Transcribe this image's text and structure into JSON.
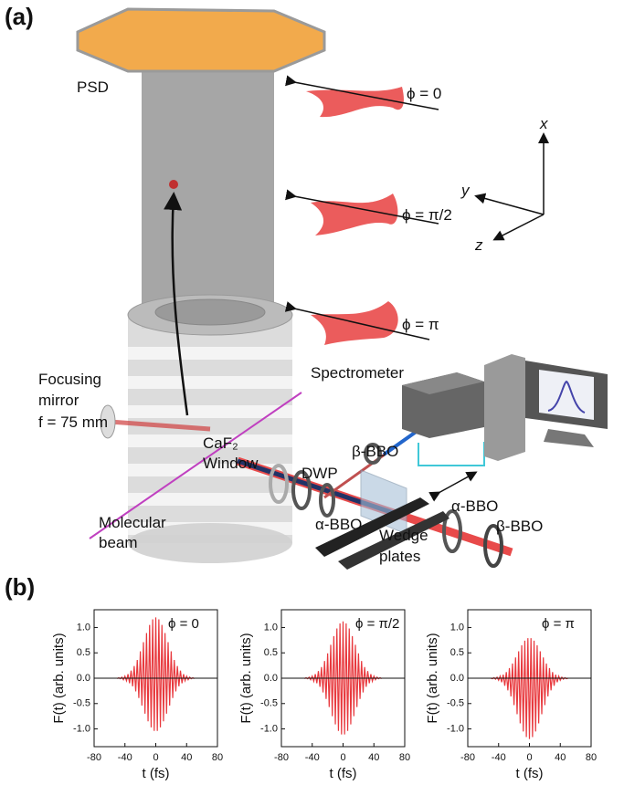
{
  "panel_a": {
    "label": "(a)",
    "labels": {
      "psd": "PSD",
      "phi_0": "ϕ = 0",
      "phi_pi2": "ϕ = π/2",
      "phi_pi": "ϕ = π",
      "axis_x": "x",
      "axis_y": "y",
      "axis_z": "z",
      "spectrometer": "Spectrometer",
      "focusing_mirror": [
        "Focusing",
        "mirror",
        "f = 75 mm"
      ],
      "caf2_window": [
        "CaF₂",
        "Window"
      ],
      "dwp": "DWP",
      "beta_bbo_1": "β-BBO",
      "alpha_bbo_1": "α-BBO",
      "molecular_beam": [
        "Molecular",
        "beam"
      ],
      "wedge_plates": [
        "Wedge",
        "plates"
      ],
      "alpha_bbo_2": "α-BBO",
      "beta_bbo_2": "β-BBO"
    }
  },
  "panel_b": {
    "label": "(b)"
  },
  "chart_data": [
    {
      "type": "line",
      "annotation": "ϕ = 0",
      "xlabel": "t (fs)",
      "ylabel": "F(t) (arb. units)",
      "xlim": [
        -80,
        80
      ],
      "xticks": [
        -80,
        -40,
        0,
        40,
        80
      ],
      "ylim": [
        -1.35,
        1.35
      ],
      "yticks": [
        {
          "value": 1,
          "label": "1.0"
        },
        {
          "value": 0.5,
          "label": "0.5"
        },
        {
          "value": 0,
          "label": "0.0"
        },
        {
          "value": -0.5,
          "label": "-0.5"
        },
        {
          "value": -1,
          "label": "-1.0"
        }
      ],
      "x": [
        -50,
        -48,
        -46,
        -44,
        -42,
        -40,
        -38,
        -36,
        -34,
        -32,
        -30,
        -28,
        -26,
        -24,
        -22,
        -20,
        -18,
        -16,
        -14,
        -12,
        -10,
        -8,
        -6,
        -4,
        -2,
        0,
        2,
        4,
        6,
        8,
        10,
        12,
        14,
        16,
        18,
        20,
        22,
        24,
        26,
        28,
        30,
        32,
        34,
        36,
        38,
        40,
        42,
        44,
        46,
        48,
        50
      ],
      "series": [
        {
          "color": "#e8383d",
          "values": [
            -0.01,
            0.01,
            -0.01,
            0.02,
            -0.03,
            0.04,
            -0.05,
            0.08,
            -0.1,
            0.15,
            -0.16,
            0.24,
            -0.26,
            0.36,
            -0.39,
            0.53,
            -0.54,
            0.71,
            -0.7,
            0.89,
            -0.85,
            1.05,
            -0.97,
            1.16,
            -1.04,
            1.2,
            -1.04,
            1.16,
            -0.97,
            1.05,
            -0.85,
            0.89,
            -0.7,
            0.71,
            -0.54,
            0.53,
            -0.39,
            0.36,
            -0.26,
            0.24,
            -0.16,
            0.15,
            -0.1,
            0.08,
            -0.05,
            0.04,
            -0.03,
            0.02,
            -0.01,
            0.01,
            -0.01
          ]
        }
      ]
    },
    {
      "type": "line",
      "annotation": "ϕ = π/2",
      "xlabel": "t (fs)",
      "ylabel": "F(t) (arb. units)",
      "xlim": [
        -80,
        80
      ],
      "xticks": [
        -80,
        -40,
        0,
        40,
        80
      ],
      "ylim": [
        -1.35,
        1.35
      ],
      "yticks": [
        {
          "value": 1,
          "label": "1.0"
        },
        {
          "value": 0.5,
          "label": "0.5"
        },
        {
          "value": 0,
          "label": "0.0"
        },
        {
          "value": -0.5,
          "label": "-0.5"
        },
        {
          "value": -1,
          "label": "-1.0"
        }
      ],
      "x": [
        -50,
        -48,
        -46,
        -44,
        -42,
        -40,
        -38,
        -36,
        -34,
        -32,
        -30,
        -28,
        -26,
        -24,
        -22,
        -20,
        -18,
        -16,
        -14,
        -12,
        -10,
        -8,
        -6,
        -4,
        -2,
        0,
        2,
        4,
        6,
        8,
        10,
        12,
        14,
        16,
        18,
        20,
        22,
        24,
        26,
        28,
        30,
        32,
        34,
        36,
        38,
        40,
        42,
        44,
        46,
        48,
        50
      ],
      "series": [
        {
          "color": "#e8383d",
          "values": [
            -0.01,
            0.01,
            -0.01,
            0.02,
            -0.03,
            0.04,
            -0.06,
            0.08,
            -0.1,
            0.14,
            -0.17,
            0.22,
            -0.28,
            0.34,
            -0.41,
            0.49,
            -0.57,
            0.66,
            -0.75,
            0.83,
            -0.91,
            0.98,
            -1.04,
            1.08,
            -1.11,
            1.12,
            -1.11,
            1.08,
            -1.04,
            0.98,
            -0.91,
            0.83,
            -0.75,
            0.66,
            -0.57,
            0.49,
            -0.41,
            0.34,
            -0.28,
            0.22,
            -0.17,
            0.14,
            -0.1,
            0.08,
            -0.06,
            0.04,
            -0.03,
            0.02,
            -0.01,
            0.01,
            -0.01
          ]
        }
      ]
    },
    {
      "type": "line",
      "annotation": "ϕ = π",
      "xlabel": "t (fs)",
      "ylabel": "F(t) (arb. units)",
      "xlim": [
        -80,
        80
      ],
      "xticks": [
        -80,
        -40,
        0,
        40,
        80
      ],
      "ylim": [
        -1.35,
        1.35
      ],
      "yticks": [
        {
          "value": 1,
          "label": "1.0"
        },
        {
          "value": 0.5,
          "label": "0.5"
        },
        {
          "value": 0,
          "label": "0.0"
        },
        {
          "value": -0.5,
          "label": "-0.5"
        },
        {
          "value": -1,
          "label": "-1.0"
        }
      ],
      "x": [
        -50,
        -48,
        -46,
        -44,
        -42,
        -40,
        -38,
        -36,
        -34,
        -32,
        -30,
        -28,
        -26,
        -24,
        -22,
        -20,
        -18,
        -16,
        -14,
        -12,
        -10,
        -8,
        -6,
        -4,
        -2,
        0,
        2,
        4,
        6,
        8,
        10,
        12,
        14,
        16,
        18,
        20,
        22,
        24,
        26,
        28,
        30,
        32,
        34,
        36,
        38,
        40,
        42,
        44,
        46,
        48,
        50
      ],
      "series": [
        {
          "color": "#e8383d",
          "values": [
            0,
            -0.01,
            0.01,
            -0.02,
            0.02,
            -0.04,
            0.04,
            -0.08,
            0.07,
            -0.15,
            0.12,
            -0.24,
            0.2,
            -0.36,
            0.29,
            -0.53,
            0.41,
            -0.71,
            0.53,
            -0.89,
            0.65,
            -1.05,
            0.74,
            -1.16,
            0.79,
            -1.2,
            0.79,
            -1.16,
            0.74,
            -1.05,
            0.65,
            -0.89,
            0.53,
            -0.71,
            0.41,
            -0.53,
            0.29,
            -0.36,
            0.2,
            -0.24,
            0.12,
            -0.15,
            0.07,
            -0.08,
            0.04,
            -0.04,
            0.02,
            -0.02,
            0.01,
            -0.01,
            0
          ]
        }
      ]
    }
  ]
}
